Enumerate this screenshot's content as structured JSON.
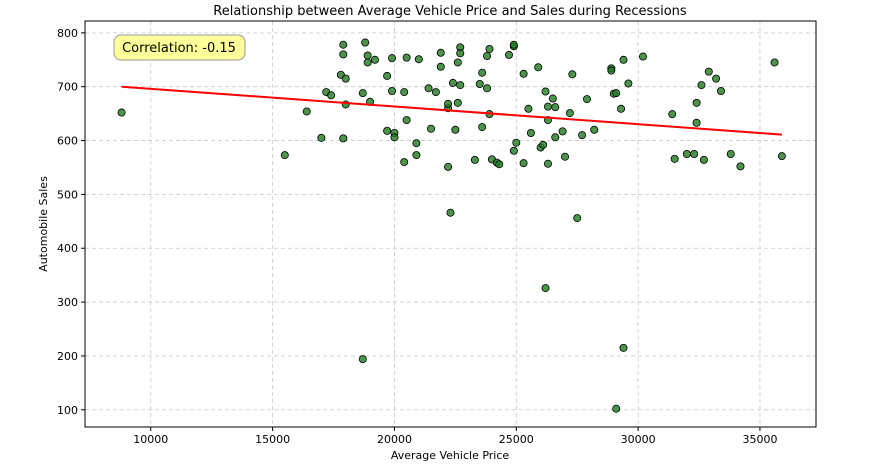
{
  "chart_data": {
    "type": "scatter",
    "title": "Relationship between Average Vehicle Price and Sales during Recessions",
    "xlabel": "Average Vehicle Price",
    "ylabel": "Automobile Sales",
    "xlim": [
      7300,
      37300
    ],
    "ylim": [
      68,
      822
    ],
    "x_ticks": [
      10000,
      15000,
      20000,
      25000,
      30000,
      35000
    ],
    "y_ticks": [
      100,
      200,
      300,
      400,
      500,
      600,
      700,
      800
    ],
    "grid": true,
    "point_color": "#1e7b1e",
    "point_edge_color": "#000000",
    "trend_color": "#ff0000",
    "annotation": "Correlation: -0.15",
    "annotation_bg": "#ffff99",
    "trendline": {
      "x": [
        8800,
        35900
      ],
      "y": [
        700,
        611
      ]
    },
    "points": [
      [
        8800,
        652
      ],
      [
        15500,
        573
      ],
      [
        16400,
        654
      ],
      [
        17000,
        605
      ],
      [
        17200,
        690
      ],
      [
        17400,
        684
      ],
      [
        17800,
        722
      ],
      [
        17900,
        760
      ],
      [
        17900,
        778
      ],
      [
        17900,
        604
      ],
      [
        18000,
        667
      ],
      [
        18000,
        715
      ],
      [
        18700,
        194
      ],
      [
        18700,
        688
      ],
      [
        18800,
        782
      ],
      [
        18900,
        745
      ],
      [
        18900,
        758
      ],
      [
        19000,
        672
      ],
      [
        19200,
        750
      ],
      [
        19700,
        618
      ],
      [
        19700,
        720
      ],
      [
        19900,
        692
      ],
      [
        19900,
        753
      ],
      [
        20000,
        614
      ],
      [
        20000,
        606
      ],
      [
        20400,
        560
      ],
      [
        20400,
        690
      ],
      [
        20500,
        754
      ],
      [
        20500,
        638
      ],
      [
        20900,
        573
      ],
      [
        20900,
        595
      ],
      [
        21000,
        751
      ],
      [
        21400,
        697
      ],
      [
        21500,
        622
      ],
      [
        21700,
        690
      ],
      [
        21900,
        737
      ],
      [
        21900,
        763
      ],
      [
        22200,
        660
      ],
      [
        22200,
        668
      ],
      [
        22200,
        551
      ],
      [
        22300,
        466
      ],
      [
        22400,
        707
      ],
      [
        22500,
        620
      ],
      [
        22600,
        670
      ],
      [
        22600,
        745
      ],
      [
        22700,
        773
      ],
      [
        22700,
        762
      ],
      [
        22700,
        703
      ],
      [
        23300,
        564
      ],
      [
        23500,
        705
      ],
      [
        23600,
        625
      ],
      [
        23600,
        726
      ],
      [
        23800,
        697
      ],
      [
        23800,
        757
      ],
      [
        23900,
        770
      ],
      [
        23900,
        649
      ],
      [
        24000,
        565
      ],
      [
        24200,
        559
      ],
      [
        24300,
        556
      ],
      [
        24700,
        759
      ],
      [
        24900,
        775
      ],
      [
        24900,
        778
      ],
      [
        24900,
        581
      ],
      [
        25000,
        596
      ],
      [
        25300,
        724
      ],
      [
        25300,
        558
      ],
      [
        25500,
        659
      ],
      [
        25600,
        614
      ],
      [
        25900,
        736
      ],
      [
        26000,
        587
      ],
      [
        26100,
        592
      ],
      [
        26200,
        691
      ],
      [
        26200,
        326
      ],
      [
        26300,
        663
      ],
      [
        26300,
        638
      ],
      [
        26300,
        557
      ],
      [
        26500,
        678
      ],
      [
        26600,
        606
      ],
      [
        26600,
        662
      ],
      [
        26900,
        617
      ],
      [
        27000,
        570
      ],
      [
        27200,
        651
      ],
      [
        27300,
        723
      ],
      [
        27500,
        456
      ],
      [
        27700,
        610
      ],
      [
        27900,
        677
      ],
      [
        28200,
        620
      ],
      [
        28900,
        734
      ],
      [
        28900,
        730
      ],
      [
        29000,
        687
      ],
      [
        29100,
        102
      ],
      [
        29100,
        688
      ],
      [
        29300,
        659
      ],
      [
        29400,
        750
      ],
      [
        29400,
        215
      ],
      [
        29600,
        706
      ],
      [
        30200,
        756
      ],
      [
        31400,
        649
      ],
      [
        31500,
        566
      ],
      [
        32000,
        575
      ],
      [
        32300,
        575
      ],
      [
        32400,
        633
      ],
      [
        32400,
        670
      ],
      [
        32600,
        703
      ],
      [
        32700,
        564
      ],
      [
        32900,
        728
      ],
      [
        33200,
        715
      ],
      [
        33400,
        692
      ],
      [
        33800,
        575
      ],
      [
        34200,
        552
      ],
      [
        35600,
        745
      ],
      [
        35900,
        571
      ]
    ]
  }
}
